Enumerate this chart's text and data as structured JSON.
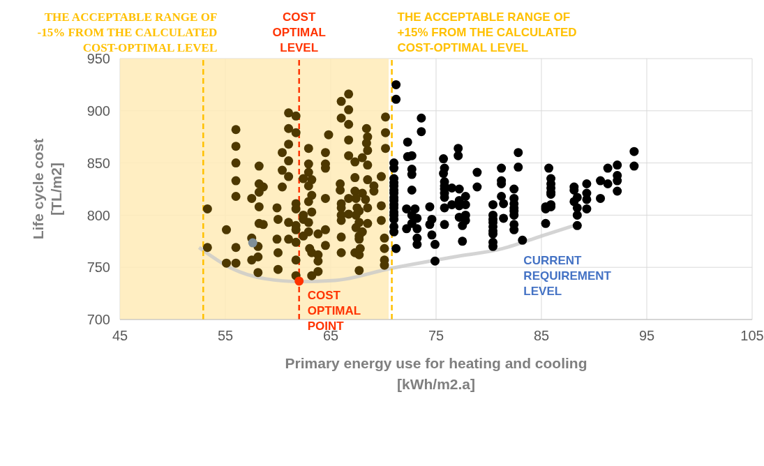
{
  "chart_data": {
    "type": "scatter",
    "xlabel": "Primary energy use for heating and cooling\n[kWh/m2.a]",
    "ylabel": "Life cycle cost\n[TL/m2]",
    "xlim": [
      45,
      105
    ],
    "xticks": [
      45,
      55,
      65,
      75,
      85,
      95,
      105
    ],
    "ylim": [
      700,
      950
    ],
    "yticks": [
      700,
      750,
      800,
      850,
      900,
      950
    ],
    "grid": true,
    "marker": "circle",
    "bands": [
      {
        "axis": "x",
        "from": 45,
        "to": 70.5,
        "color": "#ffebb7"
      }
    ],
    "ref_lines": [
      {
        "axis": "x",
        "value": 52.9,
        "label": "THE ACCEPTABLE RANGE OF\n-15% FROM THE CALCULATED\nCOST-OPTIMAL LEVEL",
        "color": "#ffc000",
        "line_style": "dashed"
      },
      {
        "axis": "x",
        "value": 62.0,
        "label": "COST\nOPTIMAL\nLEVEL",
        "color": "#ff3300",
        "line_style": "dashed"
      },
      {
        "axis": "x",
        "value": 70.8,
        "label": "THE ACCEPTABLE RANGE OF\n+15% FROM THE CALCULATED\nCOST-OPTIMAL LEVEL",
        "color": "#ffc000",
        "line_style": "dashed"
      }
    ],
    "annotations": [
      {
        "text": "COST\nOPTIMAL\nPOINT",
        "x": 62.0,
        "y": 736.8
      },
      {
        "text": "CURRENT\nREQUIREMENT\nLEVEL",
        "x": 88.6,
        "y": 791.6
      }
    ],
    "series": [
      {
        "type": "line",
        "color": "#c9c9c9",
        "marker": "none",
        "x": [
          52.5,
          55.5,
          58.8,
          62.1,
          65.4,
          70.7,
          76.7,
          81.3,
          85.3,
          88.6
        ],
        "values": [
          769,
          749.5,
          739,
          736.3,
          737.4,
          749,
          760,
          767.9,
          781,
          791.6
        ]
      },
      {
        "color": "#4d3800",
        "x": [
          53.3,
          53.3,
          55.1,
          55.1,
          56.0,
          56.0,
          56.0,
          56.0,
          56.0,
          56.0,
          56.0,
          57.5,
          58.2,
          58.2,
          58.6,
          58.2,
          58.2,
          58.2,
          58.6,
          57.5,
          58.1,
          58.1,
          57.5,
          58.1,
          60.4,
          60.4,
          60.4,
          59.9,
          60.0,
          59.9,
          61.0,
          60.0,
          60.0,
          61.0,
          61.0,
          61.0,
          61.0,
          61.0,
          61.0,
          61.7,
          61.7,
          61.7,
          61.7,
          61.7,
          61.7,
          61.7,
          61.7,
          61.7,
          62.9,
          62.9,
          62.9,
          62.4,
          63.2,
          62.9,
          63.2,
          62.9,
          63.2,
          62.4,
          62.4,
          62.9,
          62.9,
          62.4,
          63.8,
          63.0,
          63.2,
          63.8,
          63.8,
          63.8,
          63.2,
          64.5,
          64.5,
          64.5,
          64.5,
          64.5,
          64.5,
          64.8,
          66.7,
          66.0,
          66.7,
          66.0,
          66.7,
          68.4,
          70.2,
          70.2,
          70.2,
          68.5,
          68.4,
          68.5,
          66.7,
          66.7,
          67.3,
          68.0,
          68.5,
          67.3,
          68.5,
          69.8,
          65.9,
          65.9,
          69.1,
          69.1,
          67.3,
          68.0,
          68.3,
          66.7,
          67.4,
          66.0,
          66.0,
          69.8,
          68.5,
          67.5,
          67.7,
          67.4,
          66.7,
          66.0,
          66.0,
          69.8,
          67.7,
          68.5,
          67.4,
          68.0,
          67.7,
          67.7,
          66.0,
          70.1,
          66.0,
          67.3,
          67.7,
          67.8,
          70.1,
          70.1,
          70.1,
          67.7
        ],
        "values": [
          806,
          769,
          786,
          754,
          882,
          866,
          850,
          833,
          818,
          769,
          754,
          816,
          847,
          830,
          827,
          822,
          808,
          792,
          791,
          778,
          770,
          760,
          757,
          745,
          860,
          843,
          827,
          807,
          796,
          777,
          777,
          764,
          748,
          898,
          883,
          868,
          852,
          837,
          793,
          895,
          879,
          811,
          806,
          790,
          786,
          774,
          757,
          742,
          864,
          849,
          841,
          835,
          834,
          828,
          819,
          813,
          803,
          800,
          796,
          793,
          784,
          780,
          782,
          768,
          764,
          762,
          756,
          746,
          742,
          860,
          849,
          845,
          816,
          786,
          771,
          877,
          916,
          909,
          901,
          893,
          887,
          883,
          894,
          879,
          864,
          875,
          869,
          862,
          872,
          857,
          851,
          855,
          848,
          836,
          834,
          837,
          830,
          824,
          828,
          823,
          823,
          821,
          815,
          816,
          816,
          811,
          807,
          809,
          807,
          807,
          804,
          800,
          801,
          800,
          795,
          795,
          793,
          792,
          788,
          784,
          780,
          777,
          779,
          778,
          764,
          764,
          762,
          768,
          768,
          757,
          752,
          747
        ]
      },
      {
        "color": "#000000",
        "x": [
          71.2,
          71.2,
          71.0,
          71.0,
          71.0,
          71.0,
          71.0,
          71.0,
          71.0,
          71.0,
          71.0,
          71.0,
          71.0,
          71.0,
          71.0,
          71.0,
          71.0,
          71.0,
          71.2,
          72.3,
          72.3,
          72.7,
          72.7,
          72.7,
          72.7,
          72.2,
          73.0,
          72.7,
          73.2,
          72.7,
          72.2,
          73.2,
          73.2,
          73.2,
          73.6,
          73.6,
          74.4,
          74.6,
          74.4,
          74.6,
          74.9,
          74.9,
          75.7,
          75.8,
          75.7,
          75.8,
          75.8,
          75.8,
          75.8,
          75.8,
          75.8,
          75.8,
          76.5,
          76.5,
          77.1,
          77.1,
          77.2,
          77.2,
          77.2,
          77.8,
          77.8,
          77.2,
          77.8,
          77.8,
          77.5,
          77.5,
          78.9,
          78.9,
          80.4,
          80.4,
          80.4,
          80.4,
          80.4,
          80.4,
          80.4,
          80.4,
          80.4,
          81.2,
          81.2,
          81.2,
          81.2,
          81.4,
          81.4,
          82.4,
          82.4,
          82.4,
          82.4,
          82.4,
          82.4,
          82.4,
          82.4,
          82.8,
          82.8,
          83.2,
          85.4,
          85.4,
          85.4,
          85.7,
          85.9,
          85.9,
          85.9,
          85.9,
          85.9,
          85.9,
          85.9,
          88.1,
          88.1,
          88.4,
          88.1,
          88.4,
          88.4,
          88.4,
          89.3,
          89.3,
          89.3,
          89.3,
          90.6,
          90.6,
          91.3,
          91.3,
          92.2,
          92.2,
          92.2,
          92.2,
          93.8,
          93.8
        ],
        "values": [
          925,
          911,
          850,
          845,
          835,
          831,
          828,
          824,
          821,
          817,
          814,
          810,
          807,
          803,
          800,
          796,
          789,
          784,
          768,
          870,
          856,
          857,
          844,
          839,
          824,
          806,
          806,
          800,
          797,
          792,
          787,
          787,
          778,
          772,
          893,
          880,
          808,
          796,
          791,
          781,
          772,
          756,
          854,
          845,
          840,
          832,
          828,
          825,
          821,
          817,
          807,
          791,
          826,
          810,
          864,
          857,
          825,
          814,
          809,
          818,
          810,
          798,
          800,
          795,
          790,
          775,
          841,
          827,
          810,
          800,
          796,
          793,
          789,
          785,
          782,
          774,
          770,
          845,
          833,
          830,
          818,
          811,
          797,
          825,
          816,
          811,
          807,
          804,
          800,
          791,
          786,
          860,
          846,
          776,
          808,
          806,
          792,
          845,
          835,
          830,
          826,
          822,
          820,
          810,
          808,
          827,
          824,
          817,
          813,
          807,
          800,
          790,
          830,
          821,
          815,
          806,
          833,
          816,
          845,
          830,
          848,
          838,
          833,
          823,
          861,
          847
        ]
      },
      {
        "color": "#7f8f99",
        "x": [
          57.6
        ],
        "values": [
          773.5
        ]
      },
      {
        "color": "#ff3300",
        "x": [
          62.0
        ],
        "values": [
          736.8
        ]
      }
    ]
  }
}
